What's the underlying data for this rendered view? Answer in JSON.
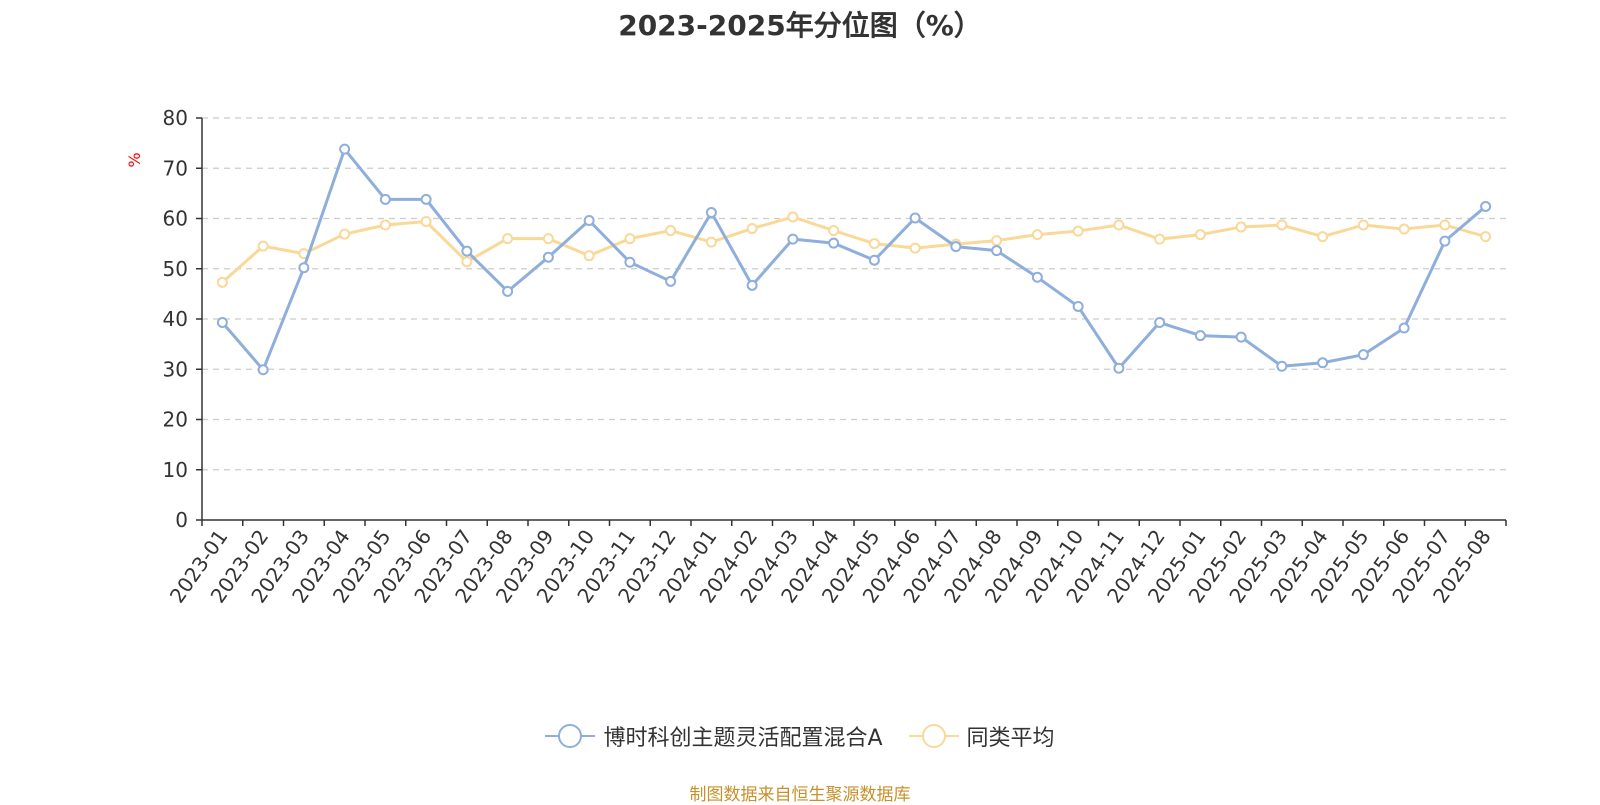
{
  "chart_data": {
    "type": "line",
    "title": "2023-2025年分位图（%）",
    "ylabel": "%",
    "ylim": [
      0,
      80
    ],
    "yticks": [
      0,
      10,
      20,
      30,
      40,
      50,
      60,
      70,
      80
    ],
    "grid": true,
    "legend_position": "bottom",
    "categories": [
      "2023-01",
      "2023-02",
      "2023-03",
      "2023-04",
      "2023-05",
      "2023-06",
      "2023-07",
      "2023-08",
      "2023-09",
      "2023-10",
      "2023-11",
      "2023-12",
      "2024-01",
      "2024-02",
      "2024-03",
      "2024-04",
      "2024-05",
      "2024-06",
      "2024-07",
      "2024-08",
      "2024-09",
      "2024-10",
      "2024-11",
      "2024-12",
      "2025-01",
      "2025-02",
      "2025-03",
      "2025-04",
      "2025-05",
      "2025-06",
      "2025-07",
      "2025-08"
    ],
    "series": [
      {
        "name": "博时科创主题灵活配置混合A",
        "color": "#8eaedb",
        "values": [
          39.3,
          29.9,
          50.2,
          73.8,
          63.8,
          63.8,
          53.5,
          45.5,
          52.3,
          59.6,
          51.3,
          47.5,
          61.2,
          46.7,
          55.9,
          55.1,
          51.7,
          60.1,
          54.4,
          53.6,
          48.3,
          42.5,
          30.2,
          39.3,
          36.7,
          36.4,
          30.6,
          31.3,
          32.9,
          38.2,
          55.5,
          62.4
        ]
      },
      {
        "name": "同类平均",
        "color": "#f9d898",
        "values": [
          47.3,
          54.5,
          53.0,
          56.9,
          58.7,
          59.4,
          51.4,
          56.0,
          56.0,
          52.6,
          56.0,
          57.6,
          55.3,
          58.0,
          60.3,
          57.6,
          55.0,
          54.1,
          54.9,
          55.6,
          56.8,
          57.5,
          58.7,
          55.9,
          56.8,
          58.3,
          58.7,
          56.4,
          58.7,
          57.9,
          58.7,
          56.4
        ]
      }
    ]
  },
  "footer": {
    "source": "制图数据来自恒生聚源数据库"
  }
}
